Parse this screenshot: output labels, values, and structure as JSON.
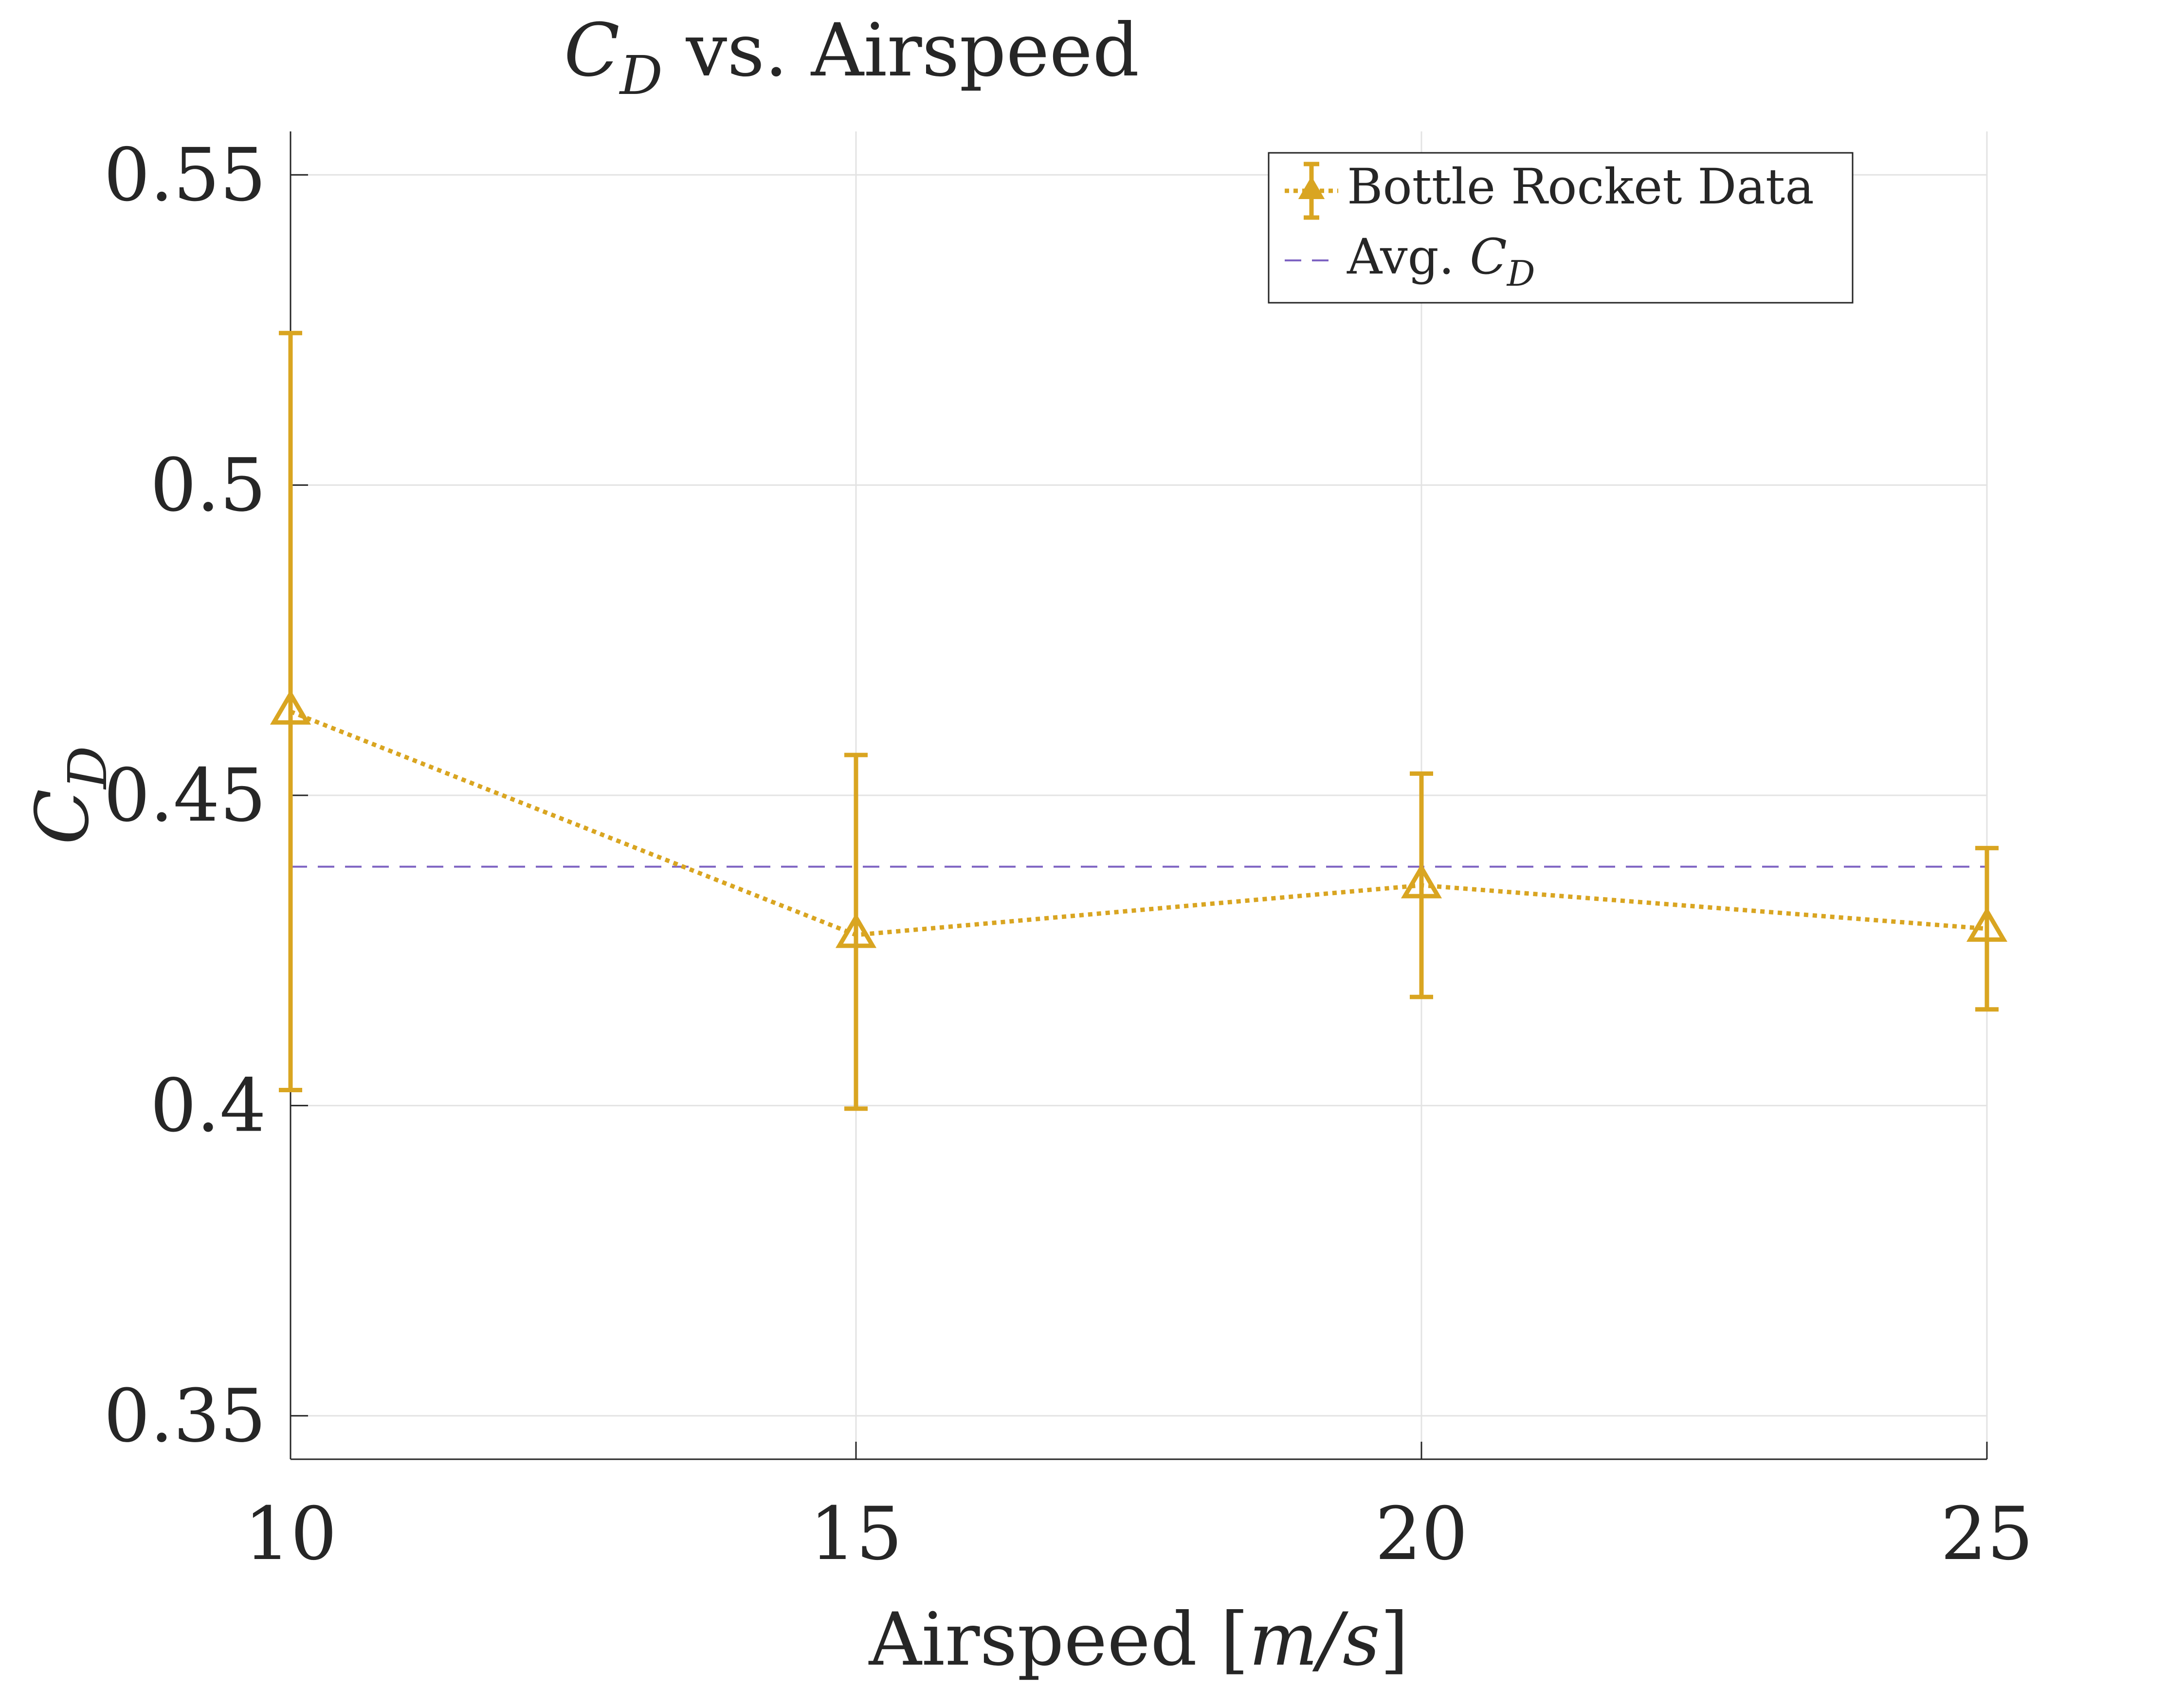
{
  "chart_data": {
    "type": "line",
    "title": {
      "main": "C",
      "sub": "D",
      "rest": " vs. Airspeed"
    },
    "xlabel": {
      "text": "Airspeed [",
      "unit": "m/s",
      "close": "]"
    },
    "ylabel": {
      "main": "C",
      "sub": "D"
    },
    "xlim": [
      10,
      25
    ],
    "ylim": [
      0.343,
      0.557
    ],
    "xticks": [
      10,
      15,
      20,
      25
    ],
    "yticks": [
      0.35,
      0.4,
      0.45,
      0.5,
      0.55
    ],
    "xtick_labels": [
      "10",
      "15",
      "20",
      "25"
    ],
    "ytick_labels": [
      "0.35",
      "0.4",
      "0.45",
      "0.5",
      "0.55"
    ],
    "grid": true,
    "legend_position": "top-right",
    "series": [
      {
        "name": "Bottle Rocket Data",
        "style": "dotted",
        "marker": "triangle",
        "color": "#D9A521",
        "x": [
          10,
          15,
          20,
          25
        ],
        "y": [
          0.4635,
          0.4275,
          0.4355,
          0.4285
        ],
        "y_lower": [
          0.4025,
          0.3995,
          0.4175,
          0.4155
        ],
        "y_upper": [
          0.5245,
          0.4565,
          0.4535,
          0.4415
        ]
      },
      {
        "name": "Avg. C_D",
        "style": "dashed",
        "color": "#7E63C2",
        "value": 0.4385
      }
    ],
    "legend": {
      "entries": [
        {
          "text": "Bottle Rocket Data"
        },
        {
          "prefix": "Avg. ",
          "main": "C",
          "sub": "D"
        }
      ]
    }
  }
}
